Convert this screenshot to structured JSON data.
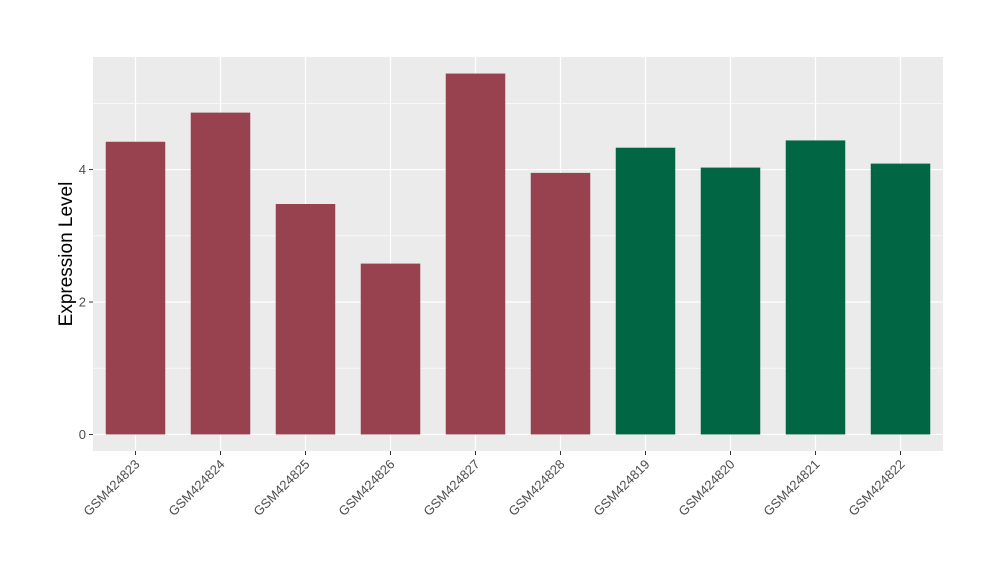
{
  "chart_data": {
    "type": "bar",
    "title": "",
    "xlabel": "",
    "ylabel": "Expression Level",
    "ylim": [
      -0.25,
      5.7
    ],
    "yticks": [
      0,
      2,
      4
    ],
    "grid": true,
    "legend": "none",
    "background": "#EBEBEB",
    "categories": [
      "GSM424823",
      "GSM424824",
      "GSM424825",
      "GSM424826",
      "GSM424827",
      "GSM424828",
      "GSM424819",
      "GSM424820",
      "GSM424821",
      "GSM424822"
    ],
    "values": [
      4.42,
      4.86,
      3.48,
      2.58,
      5.45,
      3.95,
      4.33,
      4.03,
      4.44,
      4.09
    ],
    "colors": [
      "#99424F",
      "#99424F",
      "#99424F",
      "#99424F",
      "#99424F",
      "#99424F",
      "#006644",
      "#006644",
      "#006644",
      "#006644"
    ]
  }
}
